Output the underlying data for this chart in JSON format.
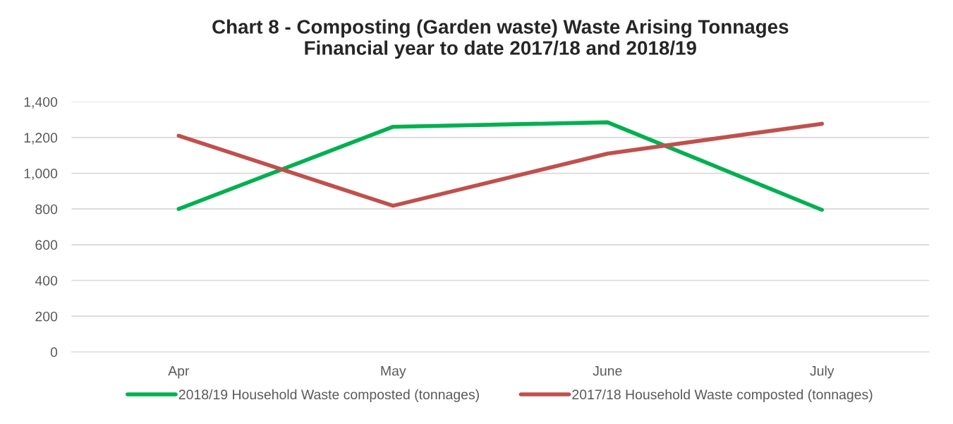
{
  "chart_data": {
    "type": "line",
    "title": "Chart 8 - Composting (Garden waste) Waste Arising Tonnages\nFinancial year to date 2017/18 and 2018/19",
    "categories": [
      "Apr",
      "May",
      "June",
      "July"
    ],
    "series": [
      {
        "name": "2018/19 Household Waste composted (tonnages)",
        "color": "#00b050",
        "values": [
          800,
          1260,
          1285,
          795
        ]
      },
      {
        "name": "2017/18 Household Waste composted (tonnages)",
        "color": "#c0504d",
        "values": [
          1210,
          818,
          1110,
          1277
        ]
      }
    ],
    "ylim": [
      0,
      1400
    ],
    "yticks": [
      {
        "value": 0,
        "label": "0"
      },
      {
        "value": 200,
        "label": "200"
      },
      {
        "value": 400,
        "label": "400"
      },
      {
        "value": 600,
        "label": "600"
      },
      {
        "value": 800,
        "label": "800"
      },
      {
        "value": 1000,
        "label": "1,000"
      },
      {
        "value": 1200,
        "label": "1,200"
      },
      {
        "value": 1400,
        "label": "1,400"
      }
    ],
    "grid": "y",
    "legend": "bottom",
    "marker": "none",
    "line_style": "solid"
  }
}
